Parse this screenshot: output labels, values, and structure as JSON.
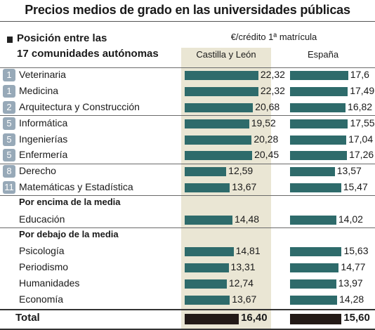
{
  "chart_data": {
    "type": "bar",
    "title": "Precios medios de grado en las universidades públicas",
    "header_left": [
      "Posición entre las",
      "17 comunidades autónomas"
    ],
    "unit_label": "€/crédito 1ª matrícula",
    "series": [
      {
        "name": "Castilla y León"
      },
      {
        "name": "España"
      }
    ],
    "groups": [
      {
        "heading": "",
        "rows": [
          {
            "rank": "1",
            "label": "Veterinaria",
            "values": [
              22.32,
              17.6
            ],
            "display": [
              "22,32",
              "17,6"
            ]
          },
          {
            "rank": "1",
            "label": "Medicina",
            "values": [
              22.32,
              17.49
            ],
            "display": [
              "22,32",
              "17,49"
            ]
          },
          {
            "rank": "2",
            "label": "Arquitectura y Construcción",
            "values": [
              20.68,
              16.82
            ],
            "display": [
              "20,68",
              "16,82"
            ]
          }
        ]
      },
      {
        "heading": "",
        "rows": [
          {
            "rank": "5",
            "label": "Informática",
            "values": [
              19.52,
              17.55
            ],
            "display": [
              "19,52",
              "17,55"
            ]
          },
          {
            "rank": "5",
            "label": "Ingenierías",
            "values": [
              20.28,
              17.04
            ],
            "display": [
              "20,28",
              "17,04"
            ]
          },
          {
            "rank": "5",
            "label": "Enfermería",
            "values": [
              20.45,
              17.26
            ],
            "display": [
              "20,45",
              "17,26"
            ]
          }
        ]
      },
      {
        "heading": "",
        "rows": [
          {
            "rank": "8",
            "label": "Derecho",
            "values": [
              12.59,
              13.57
            ],
            "display": [
              "12,59",
              "13,57"
            ]
          },
          {
            "rank": "11",
            "label": "Matemáticas y Estadística",
            "values": [
              13.67,
              15.47
            ],
            "display": [
              "13,67",
              "15,47"
            ]
          }
        ]
      },
      {
        "heading": "Por encima de la media",
        "rows": [
          {
            "rank": "",
            "label": "Educación",
            "values": [
              14.48,
              14.02
            ],
            "display": [
              "14,48",
              "14,02"
            ]
          }
        ]
      },
      {
        "heading": "Por debajo de la media",
        "rows": [
          {
            "rank": "",
            "label": "Psicología",
            "values": [
              14.81,
              15.63
            ],
            "display": [
              "14,81",
              "15,63"
            ]
          },
          {
            "rank": "",
            "label": "Periodismo",
            "values": [
              13.31,
              14.77
            ],
            "display": [
              "13,31",
              "14,77"
            ]
          },
          {
            "rank": "",
            "label": "Humanidades",
            "values": [
              12.74,
              13.97
            ],
            "display": [
              "12,74",
              "13,97"
            ]
          },
          {
            "rank": "",
            "label": "Economía",
            "values": [
              13.67,
              14.28
            ],
            "display": [
              "13,67",
              "14,28"
            ]
          }
        ]
      }
    ],
    "total": {
      "label": "Total",
      "values": [
        16.4,
        15.6
      ],
      "display": [
        "16,40",
        "15,60"
      ]
    }
  },
  "colors": {
    "bar": "#2e6b6b",
    "total_bar": "#231a17",
    "highlight_column": "#eae6d4",
    "rank_badge": "#97a9b8"
  }
}
